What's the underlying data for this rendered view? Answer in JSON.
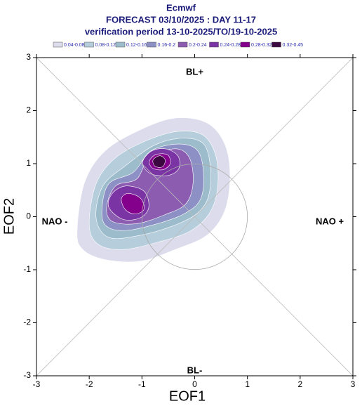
{
  "chart_data": {
    "type": "contour",
    "title": "Ecmwf",
    "subtitle": [
      "FORECAST 03/10/2025 : DAY 11-17",
      "verification period 13-10-2025/TO/19-10-2025"
    ],
    "xlabel": "EOF1",
    "ylabel": "EOF2",
    "xlim": [
      -3,
      3
    ],
    "ylim": [
      -3,
      3
    ],
    "xticks": [
      -3,
      -2,
      -1,
      0,
      1,
      2,
      3
    ],
    "yticks": [
      -3,
      -2,
      -1,
      0,
      1,
      2,
      3
    ],
    "annotations": [
      "BL+",
      "BL-",
      "NAO -",
      "NAO +"
    ],
    "levels": [
      {
        "label": "0.04-0.08",
        "color": "#dcdcec",
        "regions": [
          {
            "x": [
              -2.23,
              -2.09,
              -1.7,
              -1.03,
              -0.37,
              0.23,
              0.57,
              0.67,
              0.57,
              0.23,
              -0.37,
              -1.03,
              -1.7,
              -2.12
            ],
            "y": [
              -0.28,
              0.64,
              1.24,
              1.64,
              1.86,
              1.77,
              1.37,
              0.77,
              0.11,
              -0.35,
              -0.62,
              -0.84,
              -0.81,
              -0.62
            ]
          }
        ]
      },
      {
        "label": "0.08-0.12",
        "color": "#b6cedb",
        "regions": [
          {
            "x": [
              -2.0,
              -1.87,
              -1.5,
              -0.9,
              -0.3,
              0.17,
              0.41,
              0.43,
              0.27,
              -0.1,
              -0.7,
              -1.36,
              -1.83
            ],
            "y": [
              -0.15,
              0.62,
              1.11,
              1.44,
              1.61,
              1.53,
              1.11,
              0.51,
              0.05,
              -0.28,
              -0.48,
              -0.62,
              -0.52
            ]
          }
        ]
      },
      {
        "label": "0.12-0.16",
        "color": "#9cbccc",
        "regions": [
          {
            "x": [
              -1.87,
              -1.74,
              -1.3,
              -0.76,
              -0.23,
              0.17,
              0.3,
              0.26,
              0.03,
              -0.43,
              -1.03,
              -1.63
            ],
            "y": [
              -0.02,
              0.58,
              0.97,
              1.35,
              1.48,
              1.37,
              0.91,
              0.38,
              0.05,
              -0.18,
              -0.35,
              -0.39
            ]
          }
        ]
      },
      {
        "label": "0.16-0.2",
        "color": "#8c90c4",
        "regions": [
          {
            "x": [
              -1.76,
              -1.63,
              -1.16,
              -0.83,
              -0.3,
              0.06,
              0.17,
              0.1,
              -0.21,
              -0.7,
              -1.3,
              -1.67
            ],
            "y": [
              0.11,
              0.62,
              0.84,
              1.24,
              1.37,
              1.24,
              0.77,
              0.31,
              0.05,
              -0.13,
              -0.26,
              -0.18
            ]
          }
        ]
      },
      {
        "label": "0.2-0.24",
        "color": "#8c5cb0",
        "regions": [
          {
            "x": [
              -1.67,
              -1.5,
              -1.1,
              -0.86,
              -0.37,
              -0.1,
              -0.03,
              -0.17,
              -0.56,
              -1.09,
              -1.56
            ],
            "y": [
              0.18,
              0.58,
              0.71,
              1.11,
              1.28,
              1.11,
              0.64,
              0.24,
              0.04,
              -0.13,
              -0.09
            ]
          }
        ]
      },
      {
        "label": "0.24-0.28",
        "color": "#7a34a4",
        "regions": [
          {
            "x": [
              -0.99,
              -0.83,
              -0.56,
              -0.32,
              -0.3,
              -0.5,
              -0.83
            ],
            "y": [
              1.01,
              1.23,
              1.28,
              1.15,
              0.91,
              0.78,
              0.81
            ]
          },
          {
            "x": [
              -1.63,
              -1.56,
              -1.3,
              -0.96,
              -0.87,
              -1.03,
              -1.36
            ],
            "y": [
              0.18,
              0.44,
              0.58,
              0.48,
              0.18,
              -0.02,
              -0.05
            ]
          }
        ]
      },
      {
        "label": "0.28-0.32",
        "color": "#84008c",
        "regions": [
          {
            "x": [
              -0.86,
              -0.74,
              -0.52,
              -0.46,
              -0.59,
              -0.79
            ],
            "y": [
              1.04,
              1.17,
              1.17,
              1.01,
              0.89,
              0.91
            ]
          },
          {
            "x": [
              -1.39,
              -1.26,
              -1.03,
              -0.96,
              -1.14,
              -1.32
            ],
            "y": [
              0.34,
              0.44,
              0.35,
              0.14,
              0.05,
              0.14
            ]
          }
        ]
      },
      {
        "label": "0.32-0.45",
        "color": "#3c0840",
        "regions": [
          {
            "x": [
              -0.79,
              -0.66,
              -0.56,
              -0.61,
              -0.75
            ],
            "y": [
              1.07,
              1.15,
              1.07,
              0.94,
              0.95
            ]
          }
        ]
      }
    ]
  }
}
